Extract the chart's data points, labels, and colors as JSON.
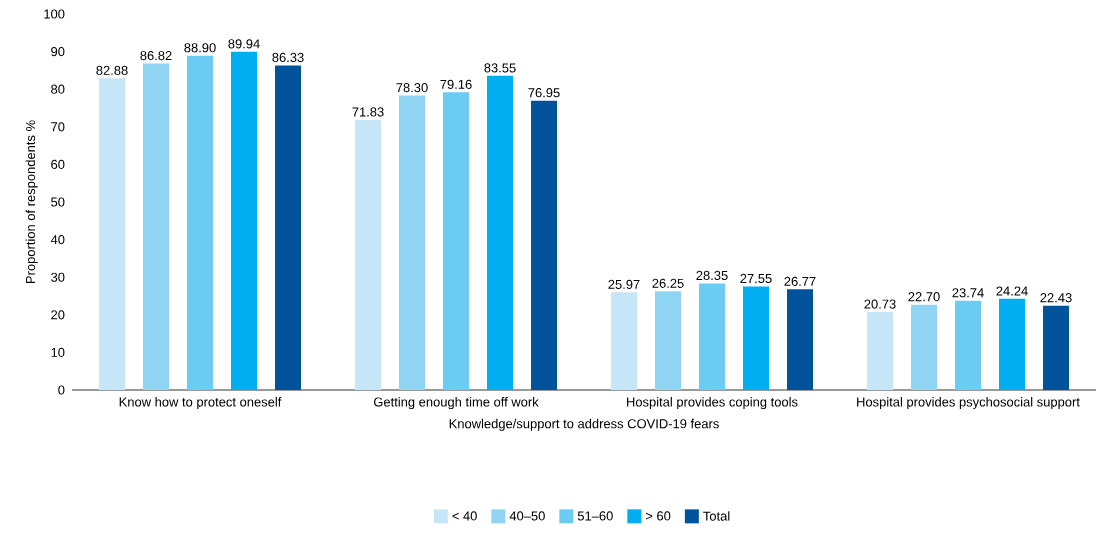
{
  "chart_data": {
    "type": "bar",
    "xlabel": "Knowledge/support to address COVID-19 fears",
    "ylabel": "Proportion of respondents %",
    "categories": [
      "Know how to protect oneself",
      "Getting enough time off work",
      "Hospital provides coping tools",
      "Hospital provides psychosocial support"
    ],
    "series": [
      {
        "name": "< 40",
        "color": "#c6e6f8",
        "values": [
          82.88,
          71.83,
          25.97,
          20.73
        ],
        "value_labels": [
          "82.88",
          "71.83",
          "25.97",
          "20.73"
        ]
      },
      {
        "name": "40–50",
        "color": "#90d4f4",
        "values": [
          86.82,
          78.3,
          26.25,
          22.7
        ],
        "value_labels": [
          "86.82",
          "78.30",
          "26.25",
          "22.70"
        ]
      },
      {
        "name": "51–60",
        "color": "#6ccbf2",
        "values": [
          88.9,
          79.16,
          28.35,
          23.74
        ],
        "value_labels": [
          "88.90",
          "79.16",
          "28.35",
          "23.74"
        ]
      },
      {
        "name": "> 60",
        "color": "#00adee",
        "values": [
          89.94,
          83.55,
          27.55,
          24.24
        ],
        "value_labels": [
          "89.94",
          "83.55",
          "27.55",
          "24.24"
        ]
      },
      {
        "name": "Total",
        "color": "#00529b",
        "values": [
          86.33,
          76.95,
          26.77,
          22.43
        ],
        "value_labels": [
          "86.33",
          "76.95",
          "26.77",
          "22.43"
        ]
      }
    ],
    "ylim": [
      0,
      100
    ],
    "yticks": [
      0,
      10,
      20,
      30,
      40,
      50,
      60,
      70,
      80,
      90,
      100
    ],
    "grid": false,
    "legend": "bottom"
  }
}
